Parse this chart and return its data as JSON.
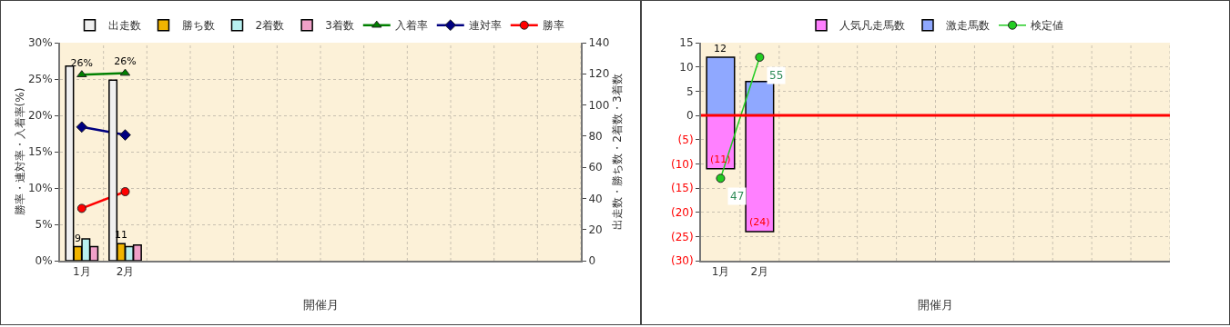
{
  "chart_data": [
    {
      "type": "bar",
      "categories": [
        "1月",
        "2月",
        null,
        null,
        null,
        null,
        null,
        null,
        null,
        null,
        null,
        null
      ],
      "xlabel": "開催月",
      "ylabel": "勝率・連対率・入着率(%)",
      "y2label": "出走数・勝ち数・2着数・3着数",
      "ylim": [
        0,
        30
      ],
      "yticks": [
        {
          "value": 0,
          "label": "0%"
        },
        {
          "value": 5,
          "label": "5%"
        },
        {
          "value": 10,
          "label": "10%"
        },
        {
          "value": 15,
          "label": "15%"
        },
        {
          "value": 20,
          "label": "20%"
        },
        {
          "value": 25,
          "label": "25%"
        },
        {
          "value": 30,
          "label": "30%"
        }
      ],
      "y2lim": [
        0,
        140
      ],
      "y2ticks": [
        0,
        20,
        40,
        60,
        80,
        100,
        120,
        140
      ],
      "grid": true,
      "legend": "top",
      "series": [
        {
          "name": "出走数",
          "color": "#f0f0f0",
          "axis": "y2",
          "values": [
            125,
            116,
            null,
            null,
            null,
            null,
            null,
            null,
            null,
            null,
            null,
            null
          ]
        },
        {
          "name": "勝ち数",
          "color": "#f0b400",
          "axis": "y2",
          "values": [
            9,
            11,
            null,
            null,
            null,
            null,
            null,
            null,
            null,
            null,
            null,
            null
          ],
          "value_labels": [
            "9",
            "11",
            null,
            null,
            null,
            null,
            null,
            null,
            null,
            null,
            null,
            null
          ]
        },
        {
          "name": "2着数",
          "color": "#b8f0f0",
          "axis": "y2",
          "values": [
            14,
            9,
            null,
            null,
            null,
            null,
            null,
            null,
            null,
            null,
            null,
            null
          ]
        },
        {
          "name": "3着数",
          "color": "#f0a0c8",
          "axis": "y2",
          "values": [
            9,
            10,
            null,
            null,
            null,
            null,
            null,
            null,
            null,
            null,
            null,
            null
          ]
        },
        {
          "name": "入着率",
          "type": "line",
          "color": "#008000",
          "marker": "triangle",
          "values": [
            25.6,
            25.8,
            null,
            null,
            null,
            null,
            null,
            null,
            null,
            null,
            null,
            null
          ],
          "value_labels": [
            "26%",
            "26%",
            null,
            null,
            null,
            null,
            null,
            null,
            null,
            null,
            null,
            null
          ]
        },
        {
          "name": "連対率",
          "type": "line",
          "color": "#000080",
          "marker": "diamond",
          "values": [
            18.4,
            17.3,
            null,
            null,
            null,
            null,
            null,
            null,
            null,
            null,
            null,
            null
          ]
        },
        {
          "name": "勝率",
          "type": "line",
          "color": "#ff0000",
          "marker": "circle",
          "values": [
            7.2,
            9.5,
            null,
            null,
            null,
            null,
            null,
            null,
            null,
            null,
            null,
            null
          ]
        }
      ]
    },
    {
      "type": "bar",
      "categories": [
        "1月",
        "2月",
        null,
        null,
        null,
        null,
        null,
        null,
        null,
        null,
        null,
        null
      ],
      "xlabel": "開催月",
      "stacked": true,
      "ylim": [
        -30,
        15
      ],
      "yticks": [
        {
          "value": -30,
          "label": "(30)"
        },
        {
          "value": -25,
          "label": "(25)"
        },
        {
          "value": -20,
          "label": "(20)"
        },
        {
          "value": -15,
          "label": "(15)"
        },
        {
          "value": -10,
          "label": "(10)"
        },
        {
          "value": -5,
          "label": "(5)"
        },
        0,
        5,
        10,
        15
      ],
      "y2lim": [
        41.56,
        55.96
      ],
      "grid": true,
      "legend": "top",
      "ref_lines": [
        {
          "axis": "y",
          "value": 0,
          "color": "#ff0000"
        }
      ],
      "series": [
        {
          "name": "人気凡走馬数",
          "color": "#ff80ff",
          "values": [
            -11,
            -24,
            null,
            null,
            null,
            null,
            null,
            null,
            null,
            null,
            null,
            null
          ],
          "value_labels": [
            "(11)",
            "(24)",
            null,
            null,
            null,
            null,
            null,
            null,
            null,
            null,
            null,
            null
          ]
        },
        {
          "name": "激走馬数",
          "color": "#8fa8ff",
          "values": [
            12,
            7,
            null,
            null,
            null,
            null,
            null,
            null,
            null,
            null,
            null,
            null
          ],
          "value_labels": [
            "12",
            null,
            null,
            null,
            null,
            null,
            null,
            null,
            null,
            null,
            null,
            null
          ]
        },
        {
          "name": "検定値",
          "type": "line",
          "axis": "y2",
          "color": "#22cc22",
          "marker": "circle",
          "values": [
            47,
            55,
            null,
            null,
            null,
            null,
            null,
            null,
            null,
            null,
            null,
            null
          ],
          "value_labels": [
            "47",
            "55",
            null,
            null,
            null,
            null,
            null,
            null,
            null,
            null,
            null,
            null
          ]
        }
      ]
    }
  ]
}
